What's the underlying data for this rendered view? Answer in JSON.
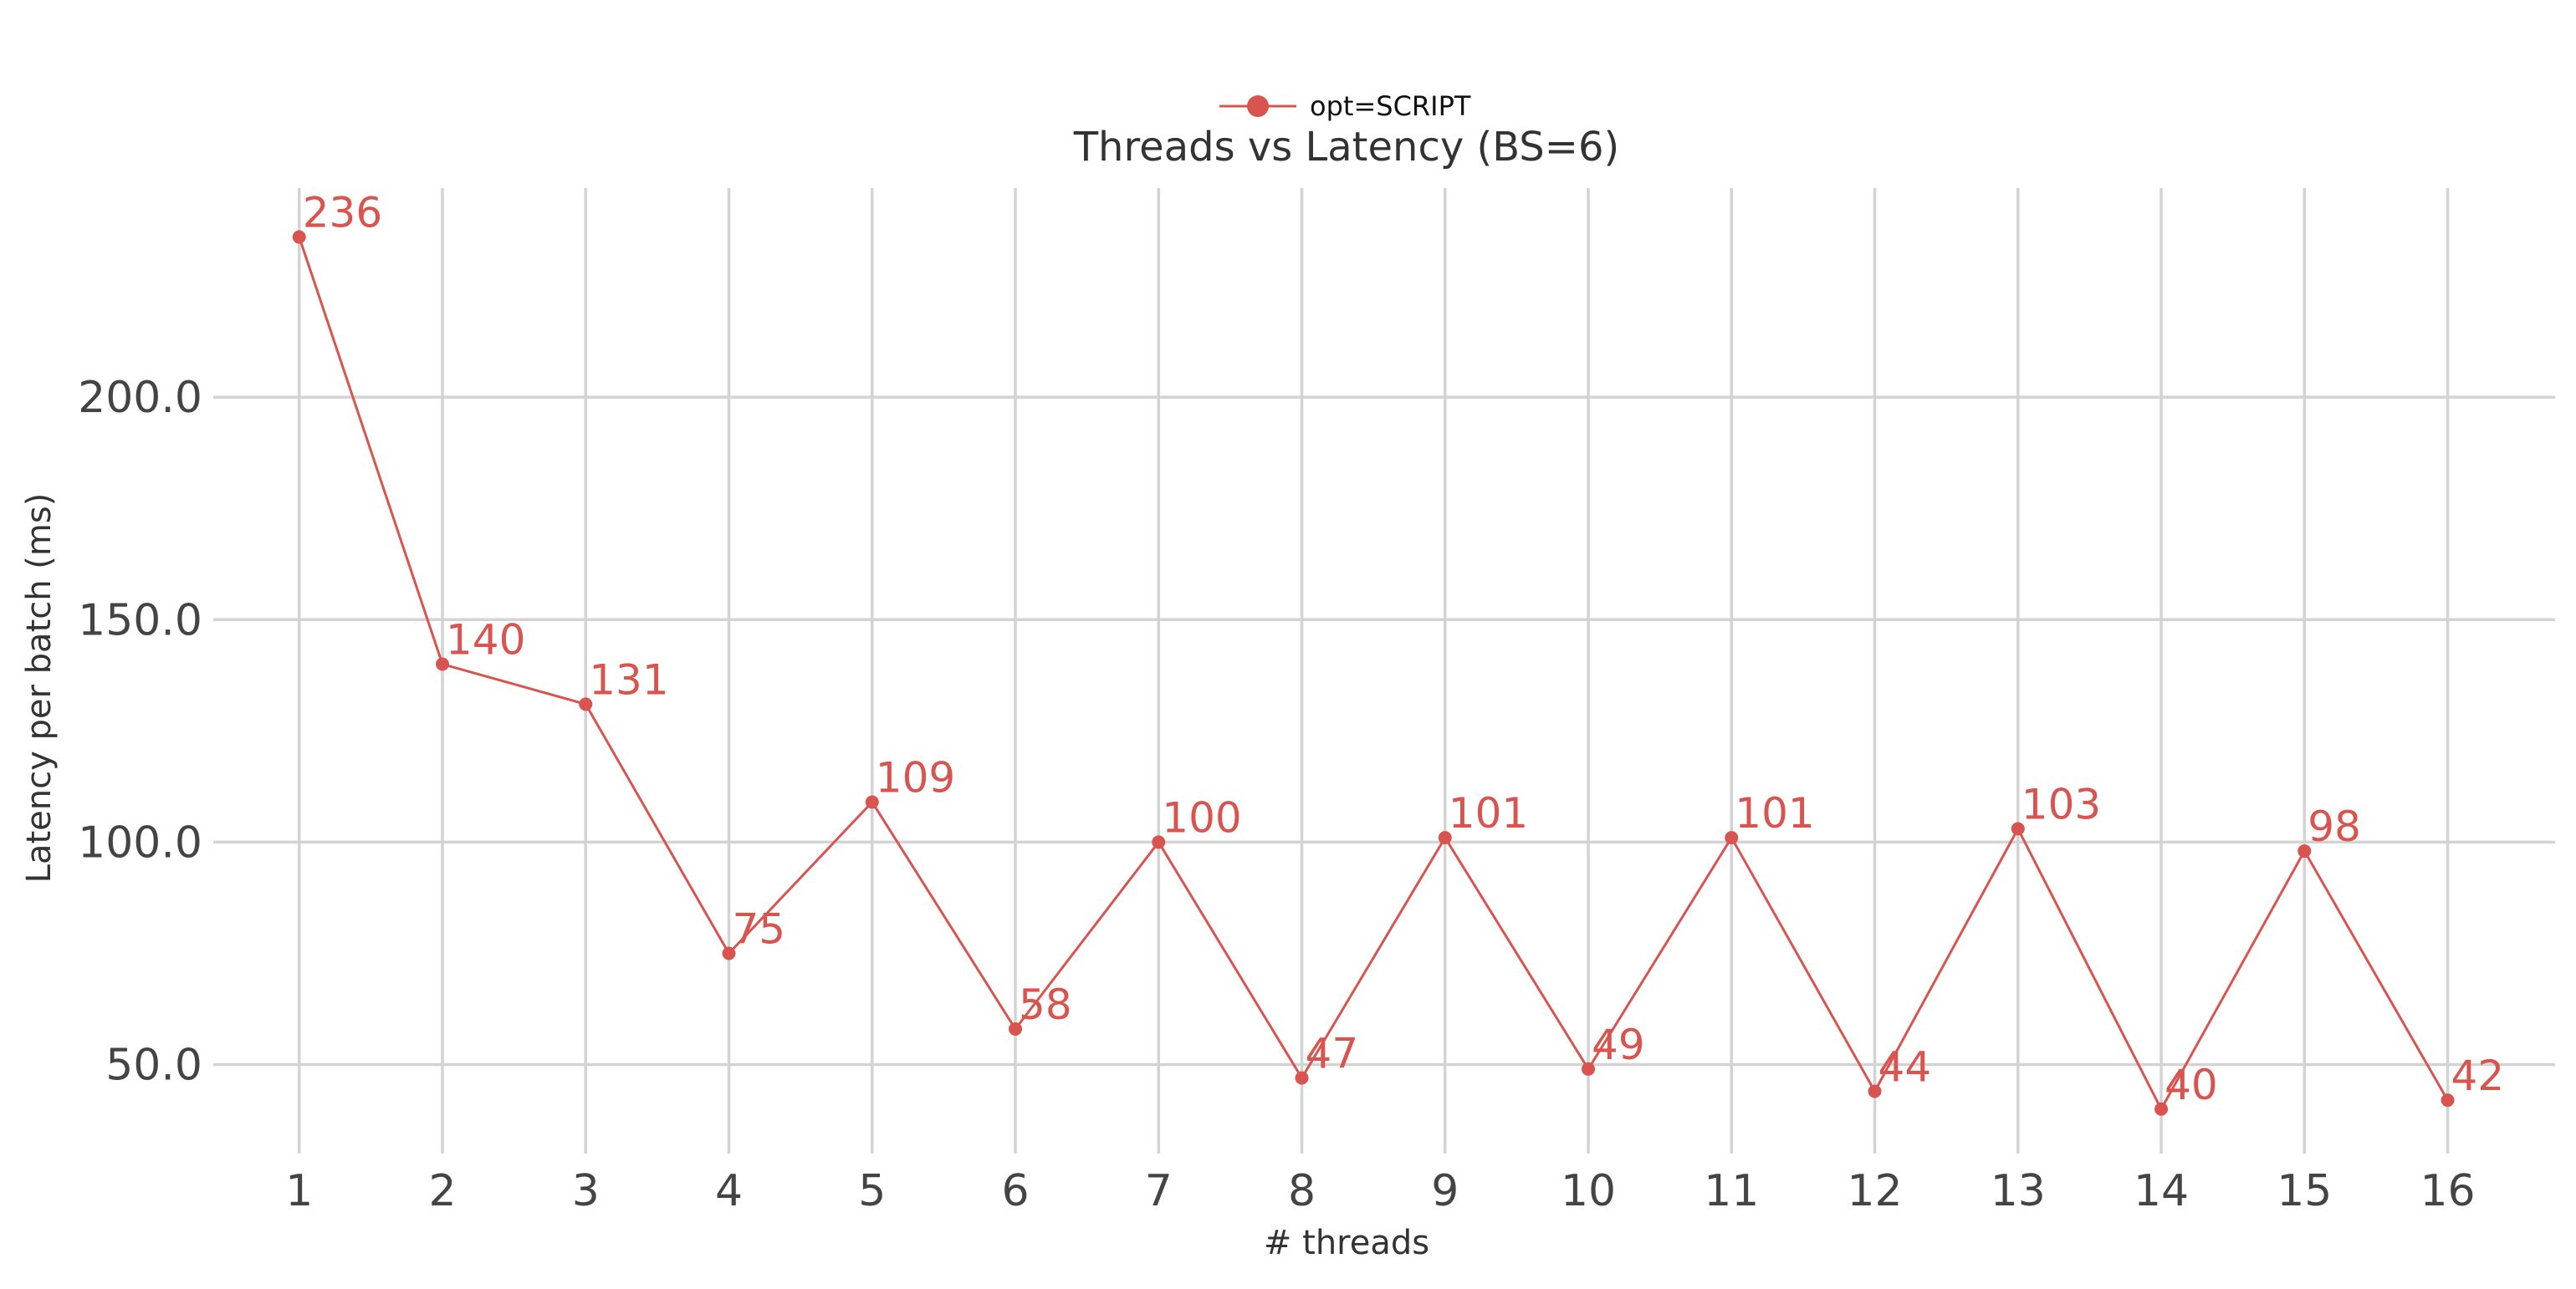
{
  "chart_data": {
    "type": "line",
    "title": "Threads vs Latency (BS=6)",
    "xlabel": "# threads",
    "ylabel": "Latency per batch (ms)",
    "x": [
      1,
      2,
      3,
      4,
      5,
      6,
      7,
      8,
      9,
      10,
      11,
      12,
      13,
      14,
      15,
      16
    ],
    "xlim": [
      0.4,
      16.75
    ],
    "ylim": [
      30,
      247
    ],
    "yticks": [
      "50.0",
      "100.0",
      "150.0",
      "200.0"
    ],
    "ytick_values": [
      50,
      100,
      150,
      200
    ],
    "grid": true,
    "legend_position": "top-center",
    "series": [
      {
        "name": "opt=SCRIPT",
        "color": "#d9534f",
        "values": [
          236,
          140,
          131,
          75,
          109,
          58,
          100,
          47,
          101,
          49,
          101,
          44,
          103,
          40,
          98,
          42
        ],
        "labels": [
          "236",
          "140",
          "131",
          "75",
          "109",
          "58",
          "100",
          "47",
          "101",
          "49",
          "101",
          "44",
          "103",
          "40",
          "98",
          "42"
        ]
      }
    ]
  }
}
